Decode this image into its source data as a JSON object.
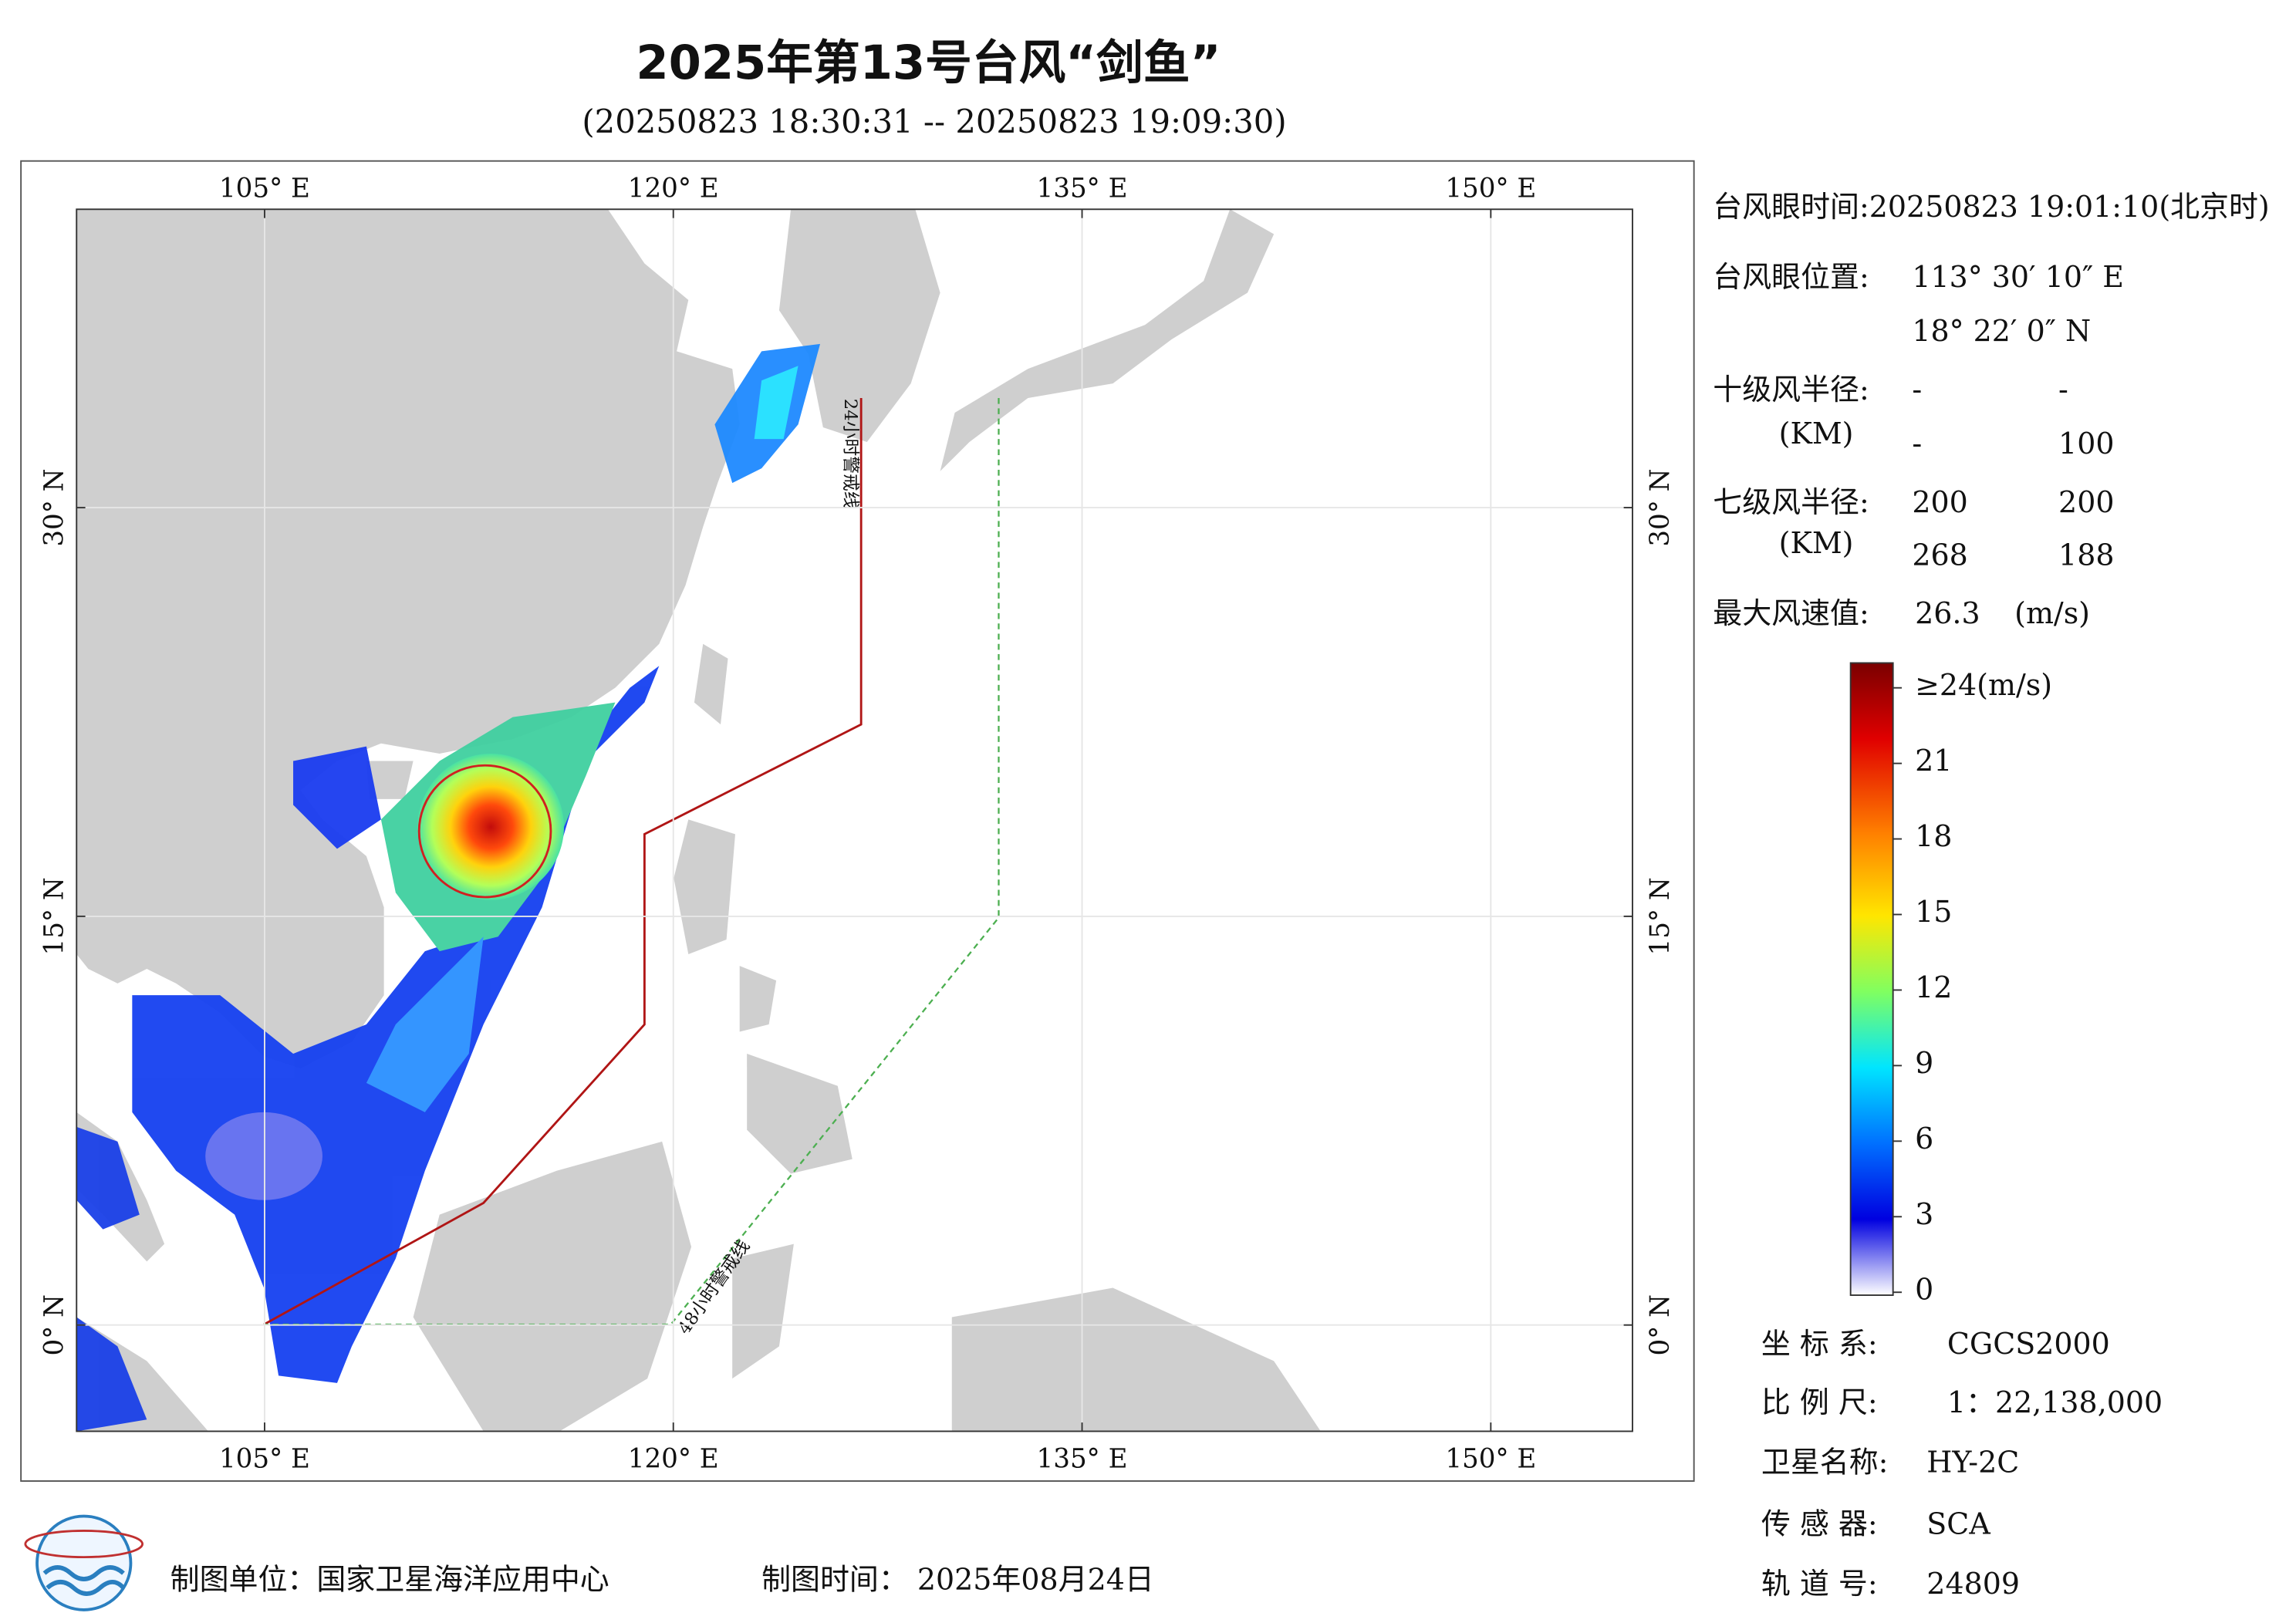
{
  "header": {
    "title": "2025年第13号台风“剑鱼”",
    "subtitle": "(20250823 18:30:31 -- 20250823 19:09:30)"
  },
  "map": {
    "xlim": [
      98.1,
      155.2
    ],
    "ylim": [
      -3.9,
      40.95
    ],
    "xticks": [
      {
        "value": 105,
        "label": "105° E"
      },
      {
        "value": 120,
        "label": "120° E"
      },
      {
        "value": 135,
        "label": "135° E"
      },
      {
        "value": 150,
        "label": "150° E"
      }
    ],
    "yticks": [
      {
        "value": 0,
        "label": "0° N"
      },
      {
        "value": 15,
        "label": "15° N"
      },
      {
        "value": 30,
        "label": "30° N"
      }
    ],
    "line_24h": "24小时警戒线",
    "line_48h": "48小时警戒线"
  },
  "info": {
    "eye_time": "台风眼时间:20250823 19:01:10(北京时)",
    "eye_pos_label": "台风眼位置:",
    "eye_lon": "113° 30′ 10″ E",
    "eye_lat": "18° 22′ 0″ N",
    "r10_label": "十级风半径:",
    "r10_unit": "(KM)",
    "r10": [
      [
        "-",
        "-"
      ],
      [
        "-",
        "100"
      ]
    ],
    "r7_label": "七级风半径:",
    "r7_unit": "(KM)",
    "r7": [
      [
        "200",
        "200"
      ],
      [
        "268",
        "188"
      ]
    ],
    "max_label": "最大风速值:",
    "max_value": "26.3",
    "max_unit": "(m/s)"
  },
  "colorbar": {
    "ticks": [
      0,
      3,
      6,
      9,
      12,
      15,
      18,
      21,
      {
        "value": 24,
        "label": "≥24(m/s)"
      }
    ],
    "lim": [
      0,
      24
    ]
  },
  "meta": {
    "crs_label": "坐 标 系:",
    "crs": "CGCS2000",
    "scale_label": "比 例 尺:",
    "scale": "1：22,138,000",
    "sat_label": "卫星名称:",
    "sat": "HY-2C",
    "sensor_label": "传 感 器:",
    "sensor": "SCA",
    "orbit_label": "轨 道 号:",
    "orbit": "24809"
  },
  "footer": {
    "org": "制图单位：国家卫星海洋应用中心",
    "date": "制图时间：  2025年08月24日"
  }
}
